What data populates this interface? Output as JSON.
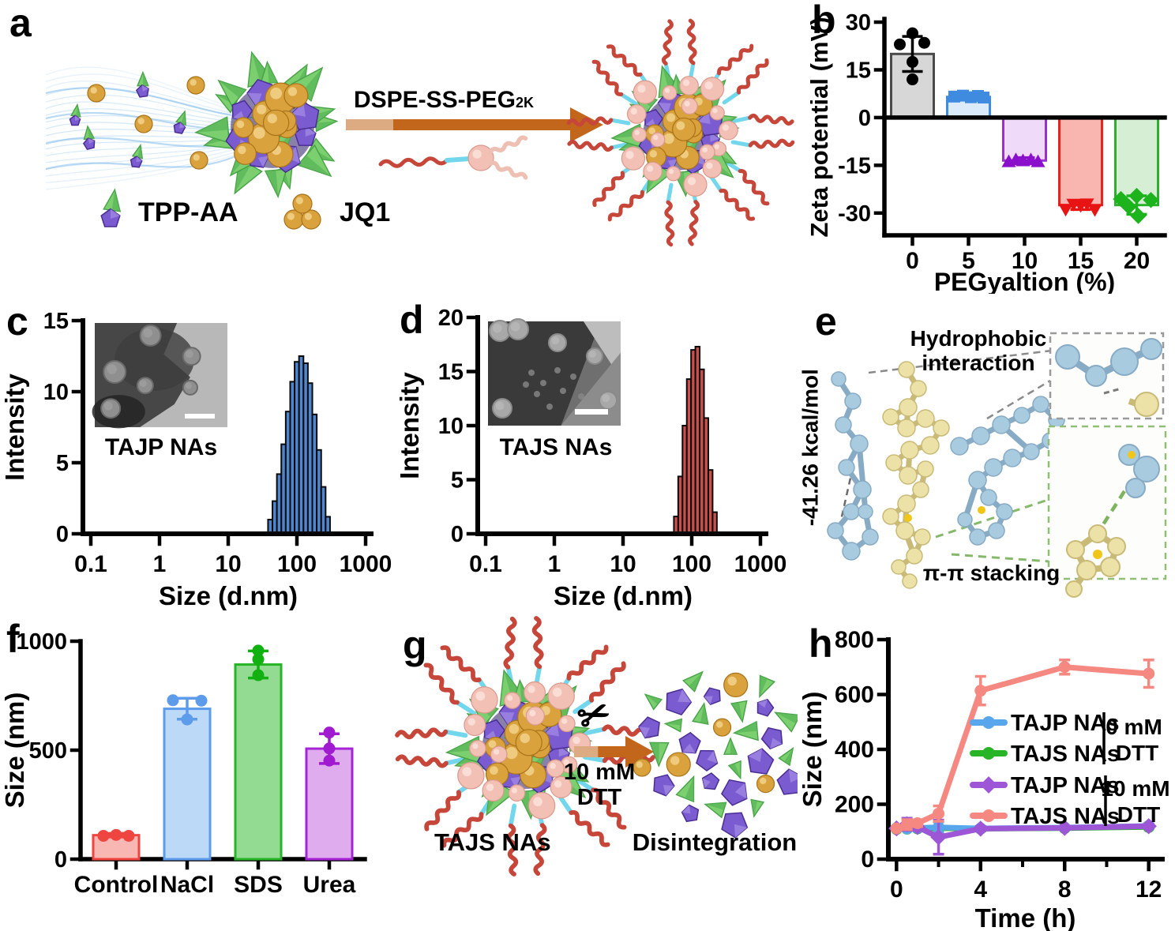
{
  "letters": {
    "a": "a",
    "b": "b",
    "c": "c",
    "d": "d",
    "e": "e",
    "f": "f",
    "g": "g",
    "h": "h"
  },
  "panel_a": {
    "arrow_label": "DSPE-SS-PEG",
    "arrow_label_sub": "2K",
    "legend_tpp": "TPP-AA",
    "legend_jq1": "JQ1"
  },
  "panel_e": {
    "label_top_line1": "Hydrophobic",
    "label_top_line2": "interaction",
    "energy": "-41.26 kcal/mol",
    "label_bottom": "π-π stacking"
  },
  "panel_g": {
    "left_label": "TAJS NAs",
    "arrow_label_line1": "10 mM",
    "arrow_label_line2": "DTT",
    "right_label": "Disintegration"
  },
  "chart_data": [
    {
      "panel": "b",
      "type": "bar",
      "xlabel": "PEGyaltion (%)",
      "ylabel": "Zeta potential (mV)",
      "categories": [
        "0",
        "5",
        "10",
        "15",
        "20"
      ],
      "values": [
        20,
        6.5,
        -13.5,
        -27.5,
        -27.5
      ],
      "errors": [
        5.5,
        0.8,
        0.9,
        1.4,
        2.9
      ],
      "ylim": [
        -37,
        31
      ],
      "yticks": [
        30,
        15,
        0,
        -15,
        -30
      ],
      "bar_fills": [
        "#d7d7d7",
        "#dcebfa",
        "#efdbf9",
        "#f9b6b1",
        "#d6eed4"
      ],
      "bar_edges": [
        "#4a4a4a",
        "#3f8be0",
        "#9a2fd0",
        "#e8221c",
        "#2bb02b"
      ],
      "marker_shapes": [
        "circle",
        "square",
        "triangle-up",
        "triangle-down",
        "diamond"
      ],
      "marker_colors": [
        "#000000",
        "#3f8be0",
        "#8a10cc",
        "#e81414",
        "#1db31d"
      ],
      "points": [
        [
          [
            -16,
            23
          ],
          [
            15,
            23.5
          ],
          [
            0,
            26.5
          ],
          [
            0,
            17.5
          ],
          [
            0,
            12
          ]
        ],
        [
          [
            -18,
            6.6
          ],
          [
            -7,
            6.9
          ],
          [
            3,
            6.4
          ],
          [
            12,
            6.8
          ],
          [
            19,
            6.3
          ]
        ],
        [
          [
            -20,
            -13.9
          ],
          [
            -11,
            -13.3
          ],
          [
            -2,
            -13.6
          ],
          [
            8,
            -13.3
          ],
          [
            17,
            -13.9
          ]
        ],
        [
          [
            -19,
            -28.8
          ],
          [
            -9,
            -27.2
          ],
          [
            0,
            -27.6
          ],
          [
            8,
            -27.1
          ],
          [
            18,
            -28.9
          ]
        ],
        [
          [
            -20,
            -25.6
          ],
          [
            -10,
            -28
          ],
          [
            0,
            -24.6
          ],
          [
            2,
            -30.9
          ],
          [
            18,
            -25.9
          ]
        ]
      ]
    },
    {
      "panel": "c",
      "type": "histogram",
      "xlabel": "Size (d.nm)",
      "ylabel": "Intensity",
      "xscale": "log",
      "xlim": [
        0.1,
        1000
      ],
      "xticks": [
        0.1,
        1,
        10,
        100,
        1000
      ],
      "ylim": [
        0,
        15
      ],
      "yticks": [
        0,
        5,
        10,
        15
      ],
      "bin_start": 38,
      "bin_ratio": 1.16,
      "values": [
        1.0,
        2.3,
        4.2,
        6.3,
        8.6,
        10.7,
        12.1,
        12.5,
        12.0,
        10.6,
        8.4,
        5.9,
        3.3,
        1.2
      ],
      "bar_fill": "#4f86cf",
      "bar_edge": "#0a0a0a",
      "inset_label": "TAJP NAs"
    },
    {
      "panel": "d",
      "type": "histogram",
      "xlabel": "Size (d.nm)",
      "ylabel": "Intensity",
      "xscale": "log",
      "xlim": [
        0.1,
        1000
      ],
      "xticks": [
        0.1,
        1,
        10,
        100,
        1000
      ],
      "ylim": [
        0,
        20
      ],
      "yticks": [
        0,
        5,
        10,
        15,
        20
      ],
      "bin_start": 55,
      "bin_ratio": 1.155,
      "values": [
        1.6,
        5.3,
        10.0,
        14.3,
        17.0,
        17.3,
        15.2,
        10.7,
        5.9,
        2.0
      ],
      "bar_fill": "#c9504b",
      "bar_edge": "#0a0a0a",
      "inset_label": "TAJS NAs"
    },
    {
      "panel": "f",
      "type": "bar",
      "xlabel": "",
      "ylabel": "Size (nm)",
      "categories": [
        "Control",
        "NaCl",
        "SDS",
        "Urea"
      ],
      "values": [
        110,
        690,
        893,
        507
      ],
      "errors": [
        8,
        48,
        62,
        68
      ],
      "ylim": [
        0,
        1000
      ],
      "yticks": [
        0,
        500,
        1000
      ],
      "bar_fills": [
        "#f8b7b3",
        "#bcd9f7",
        "#93db93",
        "#dfadee"
      ],
      "bar_edges": [
        "#ee4540",
        "#5c9ceb",
        "#27b527",
        "#a623d6"
      ],
      "marker_shapes": [
        "circle",
        "circle",
        "circle",
        "circle"
      ],
      "marker_colors": [
        "#ee4540",
        "#5c9ceb",
        "#12b112",
        "#a01ad0"
      ],
      "points": [
        [
          [
            -16,
            107
          ],
          [
            0,
            111
          ],
          [
            16,
            107
          ]
        ],
        [
          [
            -18,
            729
          ],
          [
            18,
            727
          ],
          [
            0,
            641
          ]
        ],
        [
          [
            0,
            957
          ],
          [
            0,
            917
          ],
          [
            0,
            844
          ]
        ],
        [
          [
            0,
            581
          ],
          [
            0,
            508
          ],
          [
            0,
            452
          ]
        ]
      ]
    },
    {
      "panel": "h",
      "type": "line",
      "xlabel": "Time (h)",
      "ylabel": "Size (nm)",
      "x": [
        0,
        0.5,
        1,
        2,
        4,
        8,
        12
      ],
      "xlim": [
        -0.2,
        12.5
      ],
      "xticks": [
        0,
        4,
        8,
        12
      ],
      "xminor": [
        2,
        6,
        10
      ],
      "ylim": [
        0,
        800
      ],
      "yticks": [
        0,
        200,
        400,
        600,
        800
      ],
      "series": [
        {
          "name": "TAJS NAs",
          "group": "0 mM DTT",
          "color": "#27b527",
          "marker": "circle",
          "values": [
            110,
            111,
            112,
            113,
            111,
            113,
            117
          ],
          "errors": [
            4,
            4,
            4,
            4,
            4,
            4,
            4
          ]
        },
        {
          "name": "TAJP NAs",
          "group": "0 mM DTT",
          "color": "#58a7ec",
          "marker": "circle",
          "values": [
            113,
            112,
            114,
            116,
            112,
            115,
            121
          ],
          "errors": [
            6,
            5,
            7,
            20,
            6,
            5,
            8
          ]
        },
        {
          "name": "TAJP NAs",
          "group": "10 mM DTT",
          "color": "#9c56d6",
          "marker": "diamond",
          "values": [
            112,
            127,
            117,
            80,
            111,
            114,
            120
          ],
          "errors": [
            5,
            22,
            12,
            62,
            8,
            5,
            6
          ]
        },
        {
          "name": "TAJS NAs",
          "group": "10 mM DTT",
          "color": "#f58880",
          "marker": "circle",
          "values": [
            112,
            126,
            131,
            166,
            614,
            700,
            676
          ],
          "errors": [
            7,
            18,
            12,
            28,
            52,
            26,
            50
          ]
        }
      ],
      "legend": {
        "rows": [
          {
            "name": "TAJP NAs",
            "color": "#58a7ec"
          },
          {
            "name": "TAJS NAs",
            "color": "#27b527"
          },
          {
            "name": "TAJP NAs",
            "color": "#9c56d6"
          },
          {
            "name": "TAJS NAs",
            "color": "#f58880"
          }
        ],
        "groups": [
          {
            "line1": "0 mM",
            "line2": "DTT"
          },
          {
            "line1": "10 mM",
            "line2": "DTT"
          }
        ]
      }
    }
  ]
}
